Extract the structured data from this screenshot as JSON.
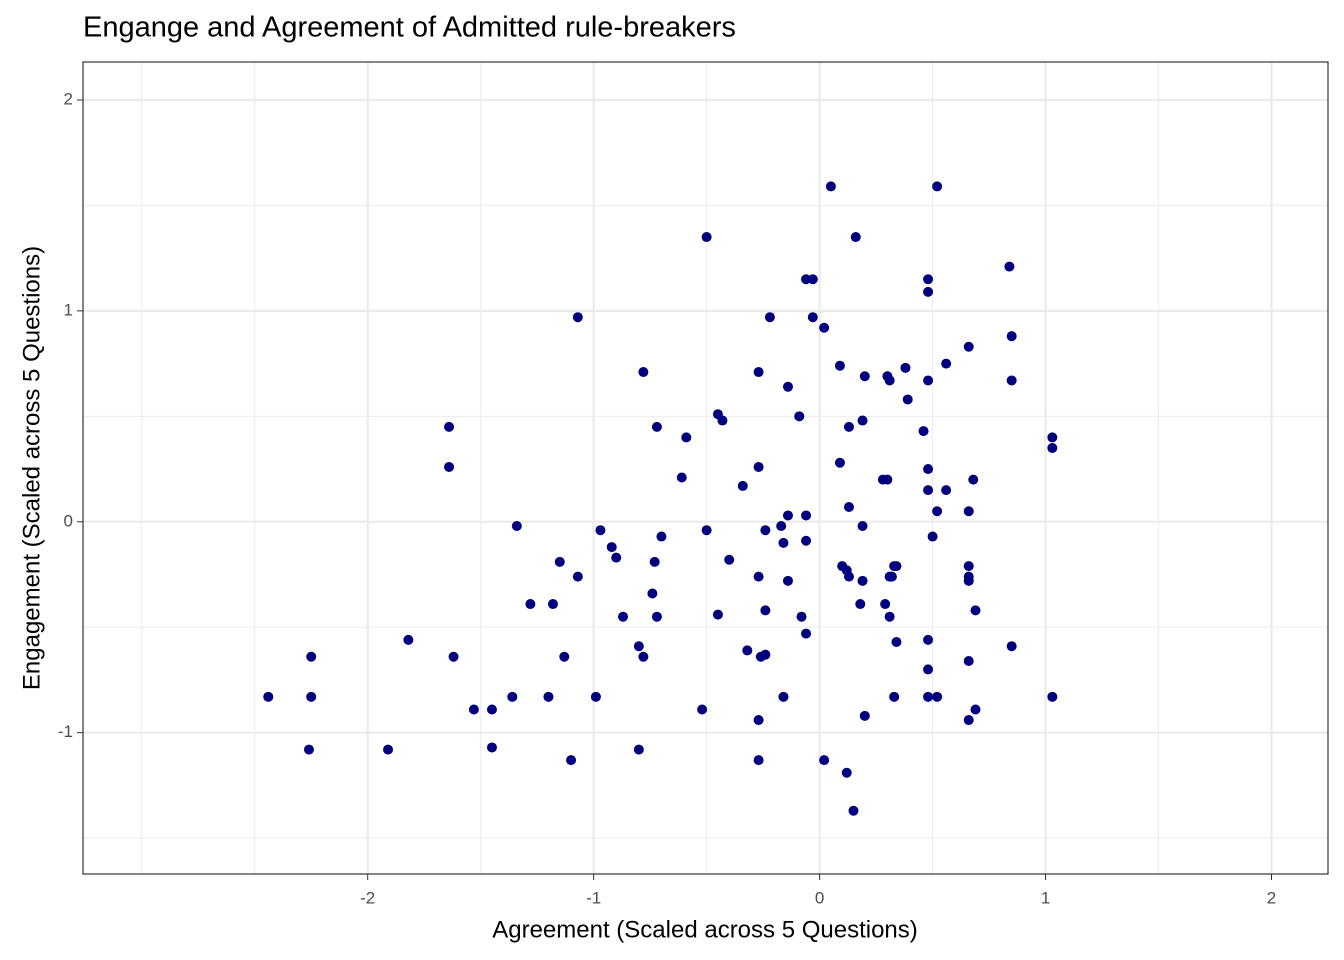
{
  "chart_data": {
    "type": "scatter",
    "title": "Engange and Agreement of Admitted rule-breakers",
    "x_label": "Agreement (Scaled across 5 Questions)",
    "y_label": "Engagement (Scaled across 5 Questions)",
    "color": "#00007f",
    "xlim": [
      -3.26,
      2.25
    ],
    "ylim": [
      -1.67,
      2.18
    ],
    "xticks": [
      -2,
      -1,
      0,
      1,
      2
    ],
    "yticks": [
      -1,
      0,
      1,
      2
    ],
    "x_minor_grid": [
      -3,
      -2.5,
      -1.5,
      -0.5,
      0.5,
      1.5
    ],
    "y_minor_grid": [
      -1.5,
      -0.5,
      0.5,
      1.5
    ],
    "grid": true,
    "x": [
      -2.44,
      -2.25,
      -2.25,
      -2.26,
      -1.91,
      -1.82,
      -1.64,
      -1.64,
      -1.62,
      -1.53,
      -1.45,
      -1.45,
      -1.36,
      -1.34,
      -1.28,
      -1.2,
      -1.18,
      -1.15,
      -1.13,
      -1.1,
      -1.07,
      -1.07,
      -0.99,
      -0.97,
      -0.92,
      -0.9,
      -0.87,
      -0.8,
      -0.8,
      -0.78,
      -0.78,
      -0.74,
      -0.73,
      -0.72,
      -0.72,
      -0.7,
      -0.59,
      -0.61,
      -0.52,
      -0.5,
      -0.5,
      -0.45,
      -0.45,
      -0.43,
      -0.4,
      -0.34,
      -0.32,
      -0.27,
      -0.27,
      -0.27,
      -0.27,
      -0.27,
      -0.26,
      -0.24,
      -0.24,
      -0.24,
      -0.22,
      -0.17,
      -0.16,
      -0.16,
      -0.14,
      -0.14,
      -0.14,
      -0.09,
      -0.08,
      -0.06,
      -0.06,
      -0.06,
      -0.06,
      -0.03,
      -0.03,
      0.02,
      0.02,
      0.05,
      0.09,
      0.09,
      0.1,
      0.12,
      0.12,
      0.13,
      0.13,
      0.13,
      0.16,
      0.15,
      0.18,
      0.19,
      0.19,
      0.19,
      0.2,
      0.2,
      0.28,
      0.29,
      0.3,
      0.3,
      0.31,
      0.31,
      0.31,
      0.32,
      0.33,
      0.33,
      0.34,
      0.34,
      0.38,
      0.39,
      0.46,
      0.48,
      0.48,
      0.48,
      0.48,
      0.48,
      0.48,
      0.48,
      0.48,
      0.5,
      0.52,
      0.52,
      0.52,
      0.56,
      0.56,
      0.66,
      0.66,
      0.66,
      0.66,
      0.66,
      0.66,
      0.66,
      0.68,
      0.69,
      0.69,
      0.84,
      0.85,
      0.85,
      0.85,
      1.03,
      1.03,
      1.03
    ],
    "values": [
      -0.83,
      -0.64,
      -0.83,
      -1.08,
      -1.08,
      -0.56,
      0.45,
      0.26,
      -0.64,
      -0.89,
      -0.89,
      -1.07,
      -0.83,
      -0.02,
      -0.39,
      -0.83,
      -0.39,
      -0.19,
      -0.64,
      -1.13,
      -0.26,
      0.97,
      -0.83,
      -0.04,
      -0.12,
      -0.17,
      -0.45,
      -0.59,
      -1.08,
      0.71,
      -0.64,
      -0.34,
      -0.19,
      -0.45,
      0.45,
      -0.07,
      0.4,
      0.21,
      -0.89,
      1.35,
      -0.04,
      -0.44,
      0.51,
      0.48,
      -0.18,
      0.17,
      -0.61,
      0.71,
      0.26,
      -0.26,
      -0.94,
      -1.13,
      -0.64,
      -0.63,
      -0.42,
      -0.04,
      0.97,
      -0.02,
      -0.1,
      -0.83,
      0.64,
      0.03,
      -0.28,
      0.5,
      -0.45,
      1.15,
      0.03,
      -0.09,
      -0.53,
      1.15,
      0.97,
      0.92,
      -1.13,
      1.59,
      0.74,
      0.28,
      -0.21,
      -0.23,
      -1.19,
      0.07,
      -0.26,
      0.45,
      1.35,
      -1.37,
      -0.39,
      0.48,
      -0.02,
      -0.28,
      0.69,
      -0.92,
      0.2,
      -0.39,
      0.2,
      0.69,
      0.67,
      -0.26,
      -0.45,
      -0.26,
      -0.83,
      -0.21,
      -0.57,
      -0.21,
      0.73,
      0.58,
      0.43,
      1.15,
      1.09,
      0.67,
      0.25,
      0.15,
      -0.56,
      -0.7,
      -0.83,
      -0.07,
      1.59,
      0.05,
      -0.83,
      0.75,
      0.15,
      0.83,
      0.05,
      -0.21,
      -0.26,
      -0.28,
      -0.66,
      -0.94,
      0.2,
      -0.42,
      -0.89,
      1.21,
      0.88,
      0.67,
      -0.59,
      0.4,
      0.35,
      -0.83
    ]
  }
}
